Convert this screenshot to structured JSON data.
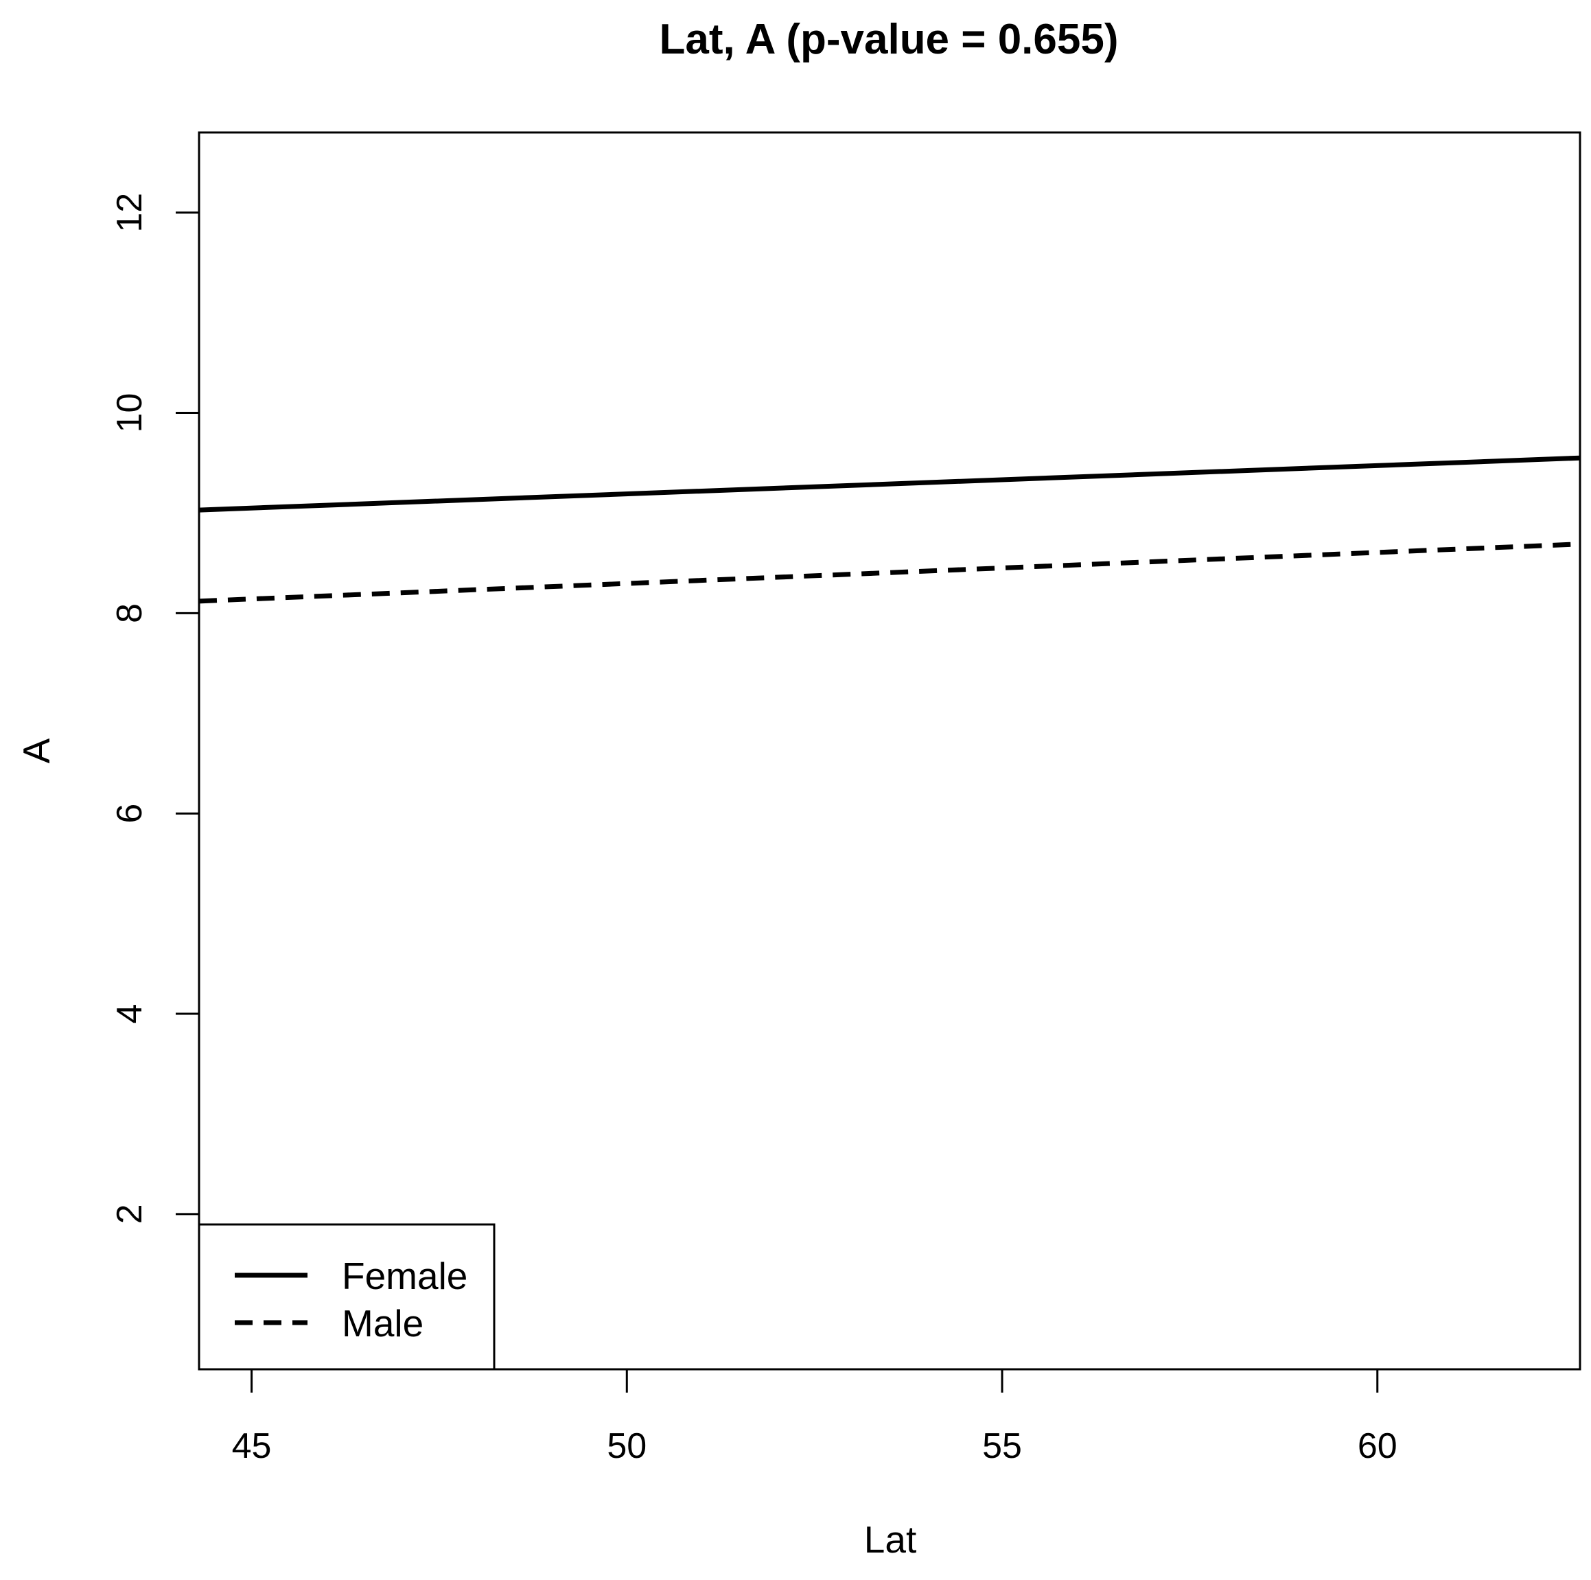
{
  "chart_data": {
    "type": "line",
    "title": "Lat, A (p-value = 0.655)",
    "xlabel": "Lat",
    "ylabel": "A",
    "xlim": [
      44.3,
      62.7
    ],
    "ylim": [
      0.45,
      12.8
    ],
    "xticks": [
      45,
      50,
      55,
      60
    ],
    "yticks": [
      2,
      4,
      6,
      8,
      10,
      12
    ],
    "grid": false,
    "legend": "bottom-left",
    "series": [
      {
        "name": "Female",
        "style": "solid",
        "x": [
          44.3,
          62.7
        ],
        "y": [
          9.03,
          9.55
        ]
      },
      {
        "name": "Male",
        "style": "dashed",
        "x": [
          44.3,
          62.7
        ],
        "y": [
          8.12,
          8.69
        ]
      }
    ]
  }
}
